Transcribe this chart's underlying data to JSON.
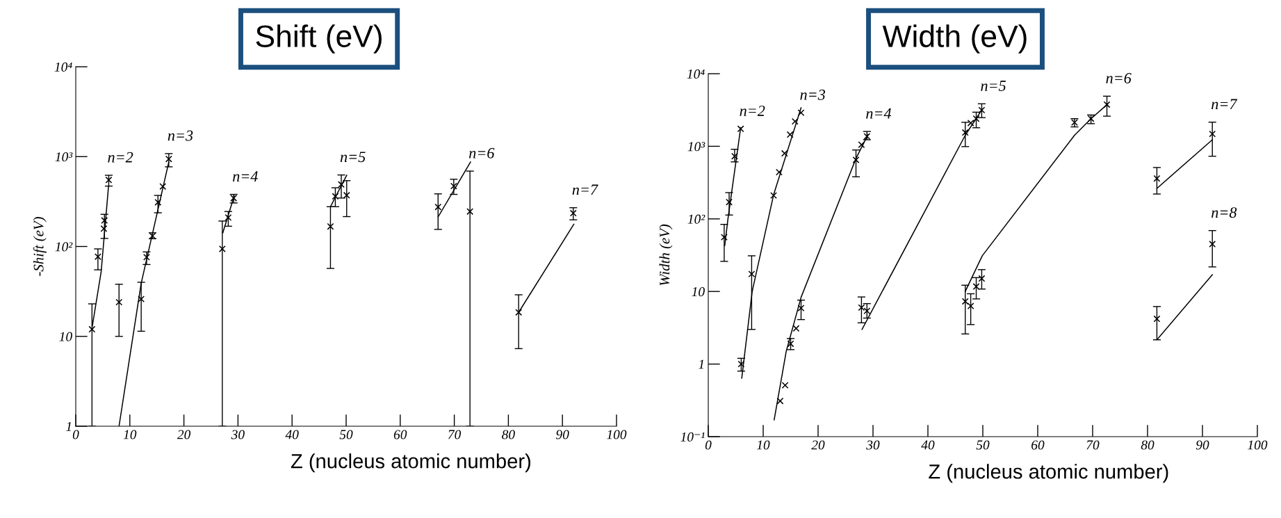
{
  "chart_data": [
    {
      "type": "scatter",
      "title": "Shift (eV)",
      "xlabel": "Z (nucleus atomic number)",
      "ylabel": "-Shift (eV)",
      "log": "y",
      "grid": false,
      "xlim": [
        0,
        100
      ],
      "xticks": [
        0,
        10,
        20,
        30,
        40,
        50,
        60,
        70,
        80,
        90,
        100
      ],
      "ylim": [
        1,
        10000
      ],
      "yticks": [
        1,
        10,
        {
          "value": 100,
          "label": "10²"
        },
        {
          "value": 1000,
          "label": "10³"
        },
        {
          "value": 10000,
          "label": "10⁴"
        }
      ],
      "series": [
        {
          "name": "n=2",
          "marker": "cross",
          "color": "#000000",
          "x": [
            3,
            4.1,
            5.2,
            5.3,
            6.1
          ],
          "values": [
            12,
            77,
            158,
            195,
            550
          ],
          "errors": [
            [
              1,
              23
            ],
            [
              55,
              94
            ],
            null,
            [
              123,
              228
            ],
            [
              470,
              620
            ]
          ]
        },
        {
          "type": "line",
          "color": "#000000",
          "x": [
            3.06,
            4.69,
            6.06
          ],
          "values": [
            13,
            52,
            470
          ]
        },
        {
          "name": "n=3",
          "marker": "cross",
          "color": "#000000",
          "x": [
            8,
            12.1,
            13.1,
            14.2,
            15.2,
            16.1,
            17.2
          ],
          "values": [
            24,
            26,
            76,
            131,
            310,
            465,
            940
          ],
          "errors": [
            [
              10,
              38
            ],
            [
              11.4,
              40
            ],
            [
              63,
              87
            ],
            [
              122,
              142
            ],
            [
              237,
              370
            ],
            null,
            [
              770,
              1080
            ]
          ]
        },
        {
          "type": "line",
          "color": "#000000",
          "x": [
            8,
            12.1,
            17.2
          ],
          "values": [
            1,
            39,
            870
          ]
        },
        {
          "name": "n=4",
          "marker": "cross",
          "color": "#000000",
          "x": [
            27.1,
            28.2,
            29.2
          ],
          "values": [
            94,
            210,
            345
          ],
          "errors": [
            [
              1,
              192
            ],
            [
              168,
              245
            ],
            [
              305,
              380
            ]
          ]
        },
        {
          "type": "line",
          "color": "#000000",
          "x": [
            27.2,
            29.3
          ],
          "values": [
            142,
            365
          ]
        },
        {
          "name": "n=5",
          "marker": "cross",
          "color": "#000000",
          "x": [
            47.1,
            48,
            49.1,
            50.1
          ],
          "values": [
            167,
            362,
            490,
            372
          ],
          "errors": [
            [
              57,
              277
            ],
            [
              277,
              450
            ],
            [
              346,
              625
            ],
            [
              215,
              540
            ]
          ]
        },
        {
          "type": "line",
          "color": "#000000",
          "x": [
            47.1,
            50.1
          ],
          "values": [
            277,
            620
          ]
        },
        {
          "name": "n=6",
          "marker": "cross",
          "color": "#000000",
          "x": [
            67,
            69.9,
            72.9
          ],
          "values": [
            275,
            470,
            245
          ],
          "errors": [
            [
              155,
              385
            ],
            [
              380,
              560
            ],
            [
              1,
              690
            ]
          ]
        },
        {
          "type": "line",
          "color": "#000000",
          "x": [
            67,
            73
          ],
          "values": [
            213,
            870
          ]
        },
        {
          "name": "n=7",
          "marker": "cross",
          "color": "#000000",
          "x": [
            81.9,
            92
          ],
          "values": [
            18.5,
            235
          ],
          "errors": [
            [
              7.3,
              29
            ],
            [
              198,
              270
            ]
          ]
        },
        {
          "type": "line",
          "color": "#000000",
          "x": [
            81.9,
            92.1
          ],
          "values": [
            18.5,
            177
          ]
        }
      ]
    },
    {
      "type": "scatter",
      "title": "Width (eV)",
      "xlabel": "Z (nucleus atomic number)",
      "ylabel": "Width (eV)",
      "log": "y",
      "grid": false,
      "xlim": [
        0,
        100
      ],
      "xticks": [
        0,
        10,
        20,
        30,
        40,
        50,
        60,
        70,
        80,
        90,
        100
      ],
      "ylim": [
        0.1,
        10000
      ],
      "yticks": [
        {
          "value": 0.1,
          "label": "10⁻¹"
        },
        1,
        10,
        {
          "value": 100,
          "label": "10²"
        },
        {
          "value": 1000,
          "label": "10³"
        },
        {
          "value": 10000,
          "label": "10⁴"
        }
      ],
      "series": [
        {
          "name": "n=2",
          "marker": "cross",
          "color": "#000000",
          "x": [
            2.9,
            3.8,
            4.8,
            5.9
          ],
          "values": [
            56,
            170,
            730,
            1740
          ],
          "errors": [
            [
              26,
              84
            ],
            [
              113,
              230
            ],
            [
              610,
              910
            ],
            null
          ]
        },
        {
          "type": "line",
          "color": "#000000",
          "x": [
            3,
            3.6,
            5.9
          ],
          "values": [
            43,
            102,
            1800
          ]
        },
        {
          "name": "n=3",
          "marker": "cross",
          "color": "#000000",
          "x": [
            6,
            7.9,
            11.9,
            12.9,
            13.9,
            14.9,
            15.8,
            16.9
          ],
          "values": [
            1,
            17.4,
            210,
            440,
            800,
            1450,
            2200,
            2900
          ],
          "errors": [
            [
              0.8,
              1.2
            ],
            [
              3,
              31
            ],
            null,
            null,
            null,
            null,
            null,
            null
          ]
        },
        {
          "type": "line",
          "color": "#000000",
          "x": [
            6.1,
            8,
            11.9,
            16.9
          ],
          "values": [
            0.64,
            10,
            215,
            3400
          ]
        },
        {
          "name": "n=4",
          "marker": "cross",
          "color": "#000000",
          "x": [
            13.1,
            14,
            15,
            16,
            16.9,
            26.9,
            27.9,
            28.9
          ],
          "values": [
            0.31,
            0.51,
            1.9,
            3.1,
            5.9,
            650,
            1050,
            1370
          ],
          "errors": [
            null,
            null,
            [
              1.58,
              2.25
            ],
            null,
            [
              4.1,
              7.6
            ],
            [
              380,
              890
            ],
            null,
            [
              1230,
              1600
            ]
          ]
        },
        {
          "type": "line",
          "color": "#000000",
          "x": [
            12,
            14.2,
            16.9,
            26.9,
            29.1
          ],
          "values": [
            0.17,
            1.5,
            8.3,
            680,
            1450
          ]
        },
        {
          "name": "n=5",
          "marker": "cross",
          "color": "#000000",
          "x": [
            27.9,
            28.9,
            46.8,
            47.8,
            48.8,
            49.8
          ],
          "values": [
            6,
            5.4,
            1550,
            2090,
            2400,
            3150
          ],
          "errors": [
            [
              3.7,
              8.4
            ],
            [
              4.3,
              6.8
            ],
            [
              990,
              2140
            ],
            null,
            [
              1800,
              2950
            ],
            [
              2480,
              3850
            ]
          ]
        },
        {
          "type": "line",
          "color": "#000000",
          "x": [
            28,
            46.8,
            49.9
          ],
          "values": [
            3,
            1420,
            3250
          ]
        },
        {
          "name": "n=6",
          "marker": "cross",
          "color": "#000000",
          "x": [
            46.8,
            47.8,
            48.8,
            49.8,
            66.7,
            69.7,
            72.6
          ],
          "values": [
            7.3,
            6.3,
            11.7,
            15.1,
            2130,
            2400,
            3750
          ],
          "errors": [
            [
              2.6,
              12.2
            ],
            [
              3.5,
              9.3
            ],
            [
              7.9,
              15.5
            ],
            [
              10.8,
              20
            ],
            [
              1850,
              2400
            ],
            [
              2050,
              2700
            ],
            [
              2600,
              4900
            ]
          ]
        },
        {
          "type": "line",
          "color": "#000000",
          "x": [
            46.8,
            49.9,
            66.7,
            69.7,
            72.7
          ],
          "values": [
            10,
            31,
            1420,
            2400,
            3800
          ]
        },
        {
          "name": "n=7",
          "marker": "cross",
          "color": "#000000",
          "x": [
            81.7,
            91.8
          ],
          "values": [
            360,
            1480
          ],
          "errors": [
            [
              220,
              510
            ],
            [
              730,
              2150
            ]
          ]
        },
        {
          "type": "line",
          "color": "#000000",
          "x": [
            81.7,
            91.8
          ],
          "values": [
            263,
            1230
          ]
        },
        {
          "name": "n=8",
          "marker": "cross",
          "color": "#000000",
          "x": [
            81.7,
            91.8
          ],
          "values": [
            4.2,
            45
          ],
          "errors": [
            [
              2.16,
              6.2
            ],
            [
              21.8,
              69
            ]
          ]
        },
        {
          "type": "line",
          "color": "#000000",
          "x": [
            81.7,
            91.8
          ],
          "values": [
            2.16,
            17
          ]
        }
      ]
    }
  ]
}
